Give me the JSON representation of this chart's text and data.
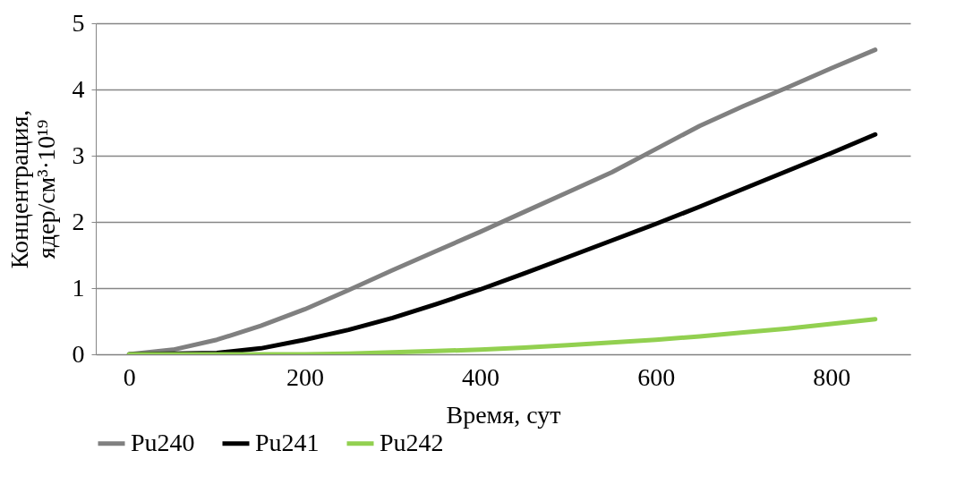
{
  "chart_data": {
    "type": "line",
    "xlabel": "Время, сут",
    "ylabel": "Концентрация,\nядер/см³·10¹⁹",
    "x": [
      0,
      50,
      100,
      150,
      200,
      250,
      300,
      350,
      400,
      450,
      500,
      550,
      600,
      650,
      700,
      750,
      800,
      850
    ],
    "series": [
      {
        "name": "Pu240",
        "color": "#808080",
        "values": [
          0,
          0.07,
          0.22,
          0.43,
          0.68,
          0.97,
          1.27,
          1.56,
          1.85,
          2.15,
          2.45,
          2.75,
          3.1,
          3.45,
          3.75,
          4.03,
          4.32,
          4.6
        ]
      },
      {
        "name": "Pu241",
        "color": "#000000",
        "values": [
          0,
          0.01,
          0.02,
          0.09,
          0.22,
          0.37,
          0.55,
          0.76,
          0.98,
          1.22,
          1.47,
          1.72,
          1.97,
          2.23,
          2.5,
          2.77,
          3.04,
          3.32
        ]
      },
      {
        "name": "Pu242",
        "color": "#92d050",
        "values": [
          0,
          0,
          0,
          0,
          0,
          0.01,
          0.03,
          0.05,
          0.07,
          0.1,
          0.14,
          0.18,
          0.22,
          0.27,
          0.33,
          0.39,
          0.46,
          0.53
        ]
      }
    ],
    "xlim": [
      -38,
      890
    ],
    "xticks": [
      0,
      200,
      400,
      600,
      800
    ],
    "ylim": [
      0,
      5
    ],
    "yticks": [
      0,
      1,
      2,
      3,
      4,
      5
    ],
    "grid": "y",
    "legend": "bottom",
    "line_style": "solid"
  }
}
